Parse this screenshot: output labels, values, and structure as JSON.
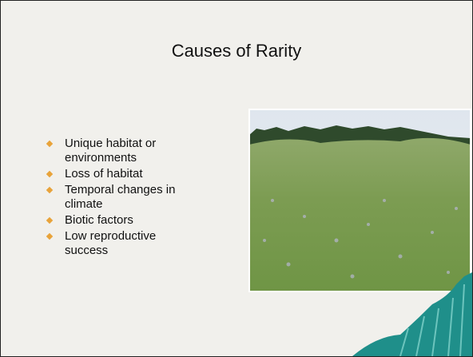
{
  "slide": {
    "title": "Causes of Rarity",
    "bullets": [
      "Unique habitat or environments",
      "Loss of habitat",
      "Temporal changes in climate",
      "Biotic factors",
      "Low reproductive success"
    ]
  }
}
